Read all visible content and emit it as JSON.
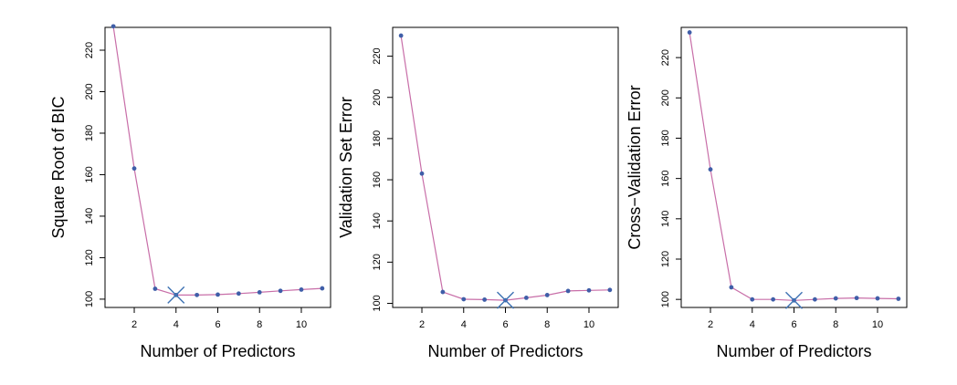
{
  "chart_data": [
    {
      "type": "line",
      "xlabel": "Number of Predictors",
      "ylabel": "Square Root of BIC",
      "xlim": [
        0.6,
        11.4
      ],
      "ylim": [
        96,
        231
      ],
      "x_ticks": [
        2,
        4,
        6,
        8,
        10
      ],
      "y_ticks": [
        100,
        120,
        140,
        160,
        180,
        200,
        220
      ],
      "x": [
        1,
        2,
        3,
        4,
        5,
        6,
        7,
        8,
        9,
        10,
        11
      ],
      "y": [
        231.5,
        163,
        105,
        102,
        102,
        102.2,
        102.7,
        103.3,
        104,
        104.6,
        105.2
      ],
      "best_x": 4,
      "best_y": 102,
      "line_color": "#c86ea8",
      "point_color": "#3f5ea8",
      "marker_color": "#3f73b4"
    },
    {
      "type": "line",
      "xlabel": "Number of Predictors",
      "ylabel": "Validation Set Error",
      "xlim": [
        0.6,
        11.4
      ],
      "ylim": [
        98,
        234
      ],
      "x_ticks": [
        2,
        4,
        6,
        8,
        10
      ],
      "y_ticks": [
        100,
        120,
        140,
        160,
        180,
        200,
        220
      ],
      "x": [
        1,
        2,
        3,
        4,
        5,
        6,
        7,
        8,
        9,
        10,
        11
      ],
      "y": [
        230,
        163,
        105.5,
        102,
        101.8,
        101.5,
        102.7,
        104,
        106,
        106.3,
        106.5
      ],
      "best_x": 6,
      "best_y": 101.5,
      "line_color": "#c86ea8",
      "point_color": "#3f5ea8",
      "marker_color": "#3f73b4"
    },
    {
      "type": "line",
      "xlabel": "Number of Predictors",
      "ylabel": "Cross−Validation Error",
      "xlim": [
        0.6,
        11.4
      ],
      "ylim": [
        96,
        235
      ],
      "x_ticks": [
        2,
        4,
        6,
        8,
        10
      ],
      "y_ticks": [
        100,
        120,
        140,
        160,
        180,
        200,
        220
      ],
      "x": [
        1,
        2,
        3,
        4,
        5,
        6,
        7,
        8,
        9,
        10,
        11
      ],
      "y": [
        232.5,
        164.5,
        106,
        100,
        100,
        99.5,
        100,
        100.5,
        100.7,
        100.5,
        100.3
      ],
      "best_x": 6,
      "best_y": 99.5,
      "line_color": "#c86ea8",
      "point_color": "#3f5ea8",
      "marker_color": "#3f73b4"
    }
  ]
}
